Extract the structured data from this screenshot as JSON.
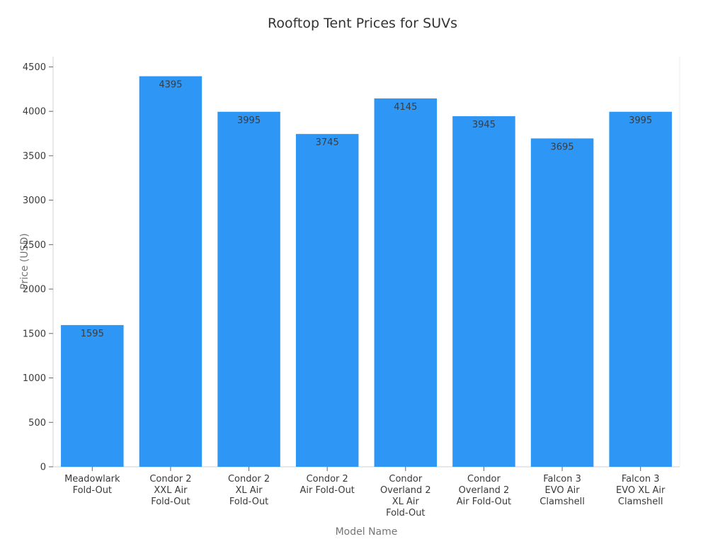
{
  "chart_data": {
    "type": "bar",
    "title": "Rooftop Tent Prices for SUVs",
    "xlabel": "Model Name",
    "ylabel": "Price (USD)",
    "categories": [
      "Meadowlark\nFold-Out",
      "Condor 2\nXXL Air\nFold-Out",
      "Condor 2\nXL Air\nFold-Out",
      "Condor 2\nAir Fold-Out",
      "Condor\nOverland 2\nXL Air\nFold-Out",
      "Condor\nOverland 2\nAir Fold-Out",
      "Falcon 3\nEVO Air\nClamshell",
      "Falcon 3\nEVO XL Air\nClamshell"
    ],
    "values": [
      1595,
      4395,
      3995,
      3745,
      4145,
      3945,
      3695,
      3995
    ],
    "bar_value_labels": [
      "1595",
      "4395",
      "3995",
      "3745",
      "4145",
      "3945",
      "3695",
      "3995"
    ],
    "yticks": [
      0,
      500,
      1000,
      1500,
      2000,
      2500,
      3000,
      3500,
      4000,
      4500
    ],
    "ylim": [
      0,
      4615
    ],
    "grid": false,
    "legend": null,
    "colors": {
      "bar": "#2E96F5",
      "title_text": "#333333",
      "tick_label": "#3a3a3a",
      "axis_title": "#757575",
      "value_label": "#3c3c3c",
      "spine": "#d2d2d2",
      "right_spine": "#ececec",
      "tick_mark": "#666666"
    }
  }
}
